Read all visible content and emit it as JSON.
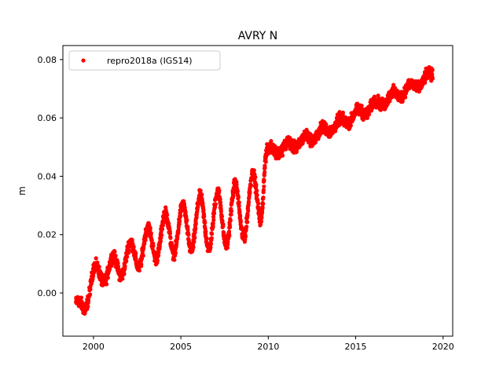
{
  "chart_data": {
    "type": "scatter",
    "title": "AVRY N",
    "xlabel": "",
    "ylabel": "m",
    "xlim": [
      1998.25,
      2020.55
    ],
    "ylim": [
      -0.0148,
      0.0848
    ],
    "xticks": [
      2000,
      2005,
      2010,
      2015,
      2020
    ],
    "xtick_labels": [
      "2000",
      "2005",
      "2010",
      "2015",
      "2020"
    ],
    "yticks": [
      0.0,
      0.02,
      0.04,
      0.06,
      0.08
    ],
    "ytick_labels": [
      "0.00",
      "0.02",
      "0.04",
      "0.06",
      "0.08"
    ],
    "grid": false,
    "legend": {
      "position": "top-left",
      "entries": [
        "repro2018a (IGS14)"
      ]
    },
    "series": [
      {
        "name": "repro2018a (IGS14)",
        "color": "#ff0000",
        "marker": "circle",
        "trend_knots": {
          "x": [
            1999.0,
            1999.5,
            2000.0,
            2001.0,
            2002.0,
            2003.0,
            2004.0,
            2005.0,
            2006.0,
            2007.0,
            2008.0,
            2009.0,
            2009.6,
            2009.8,
            2010.2,
            2011.0,
            2012.0,
            2013.0,
            2014.0,
            2015.0,
            2016.0,
            2017.0,
            2018.0,
            2019.0,
            2019.4
          ],
          "y": [
            -0.005,
            -0.004,
            0.006,
            0.008,
            0.012,
            0.016,
            0.02,
            0.022,
            0.024,
            0.025,
            0.027,
            0.03,
            0.035,
            0.046,
            0.049,
            0.05,
            0.052,
            0.055,
            0.058,
            0.061,
            0.064,
            0.067,
            0.07,
            0.073,
            0.075
          ]
        },
        "seasonal_amplitude": [
          {
            "x": 1999.0,
            "amp": 0.002
          },
          {
            "x": 2000.0,
            "amp": 0.003
          },
          {
            "x": 2002.0,
            "amp": 0.005
          },
          {
            "x": 2004.0,
            "amp": 0.007
          },
          {
            "x": 2006.0,
            "amp": 0.009
          },
          {
            "x": 2008.0,
            "amp": 0.01
          },
          {
            "x": 2009.7,
            "amp": 0.01
          },
          {
            "x": 2010.0,
            "amp": 0.0015
          },
          {
            "x": 2019.4,
            "amp": 0.0015
          }
        ],
        "noise": 0.0012
      }
    ]
  }
}
